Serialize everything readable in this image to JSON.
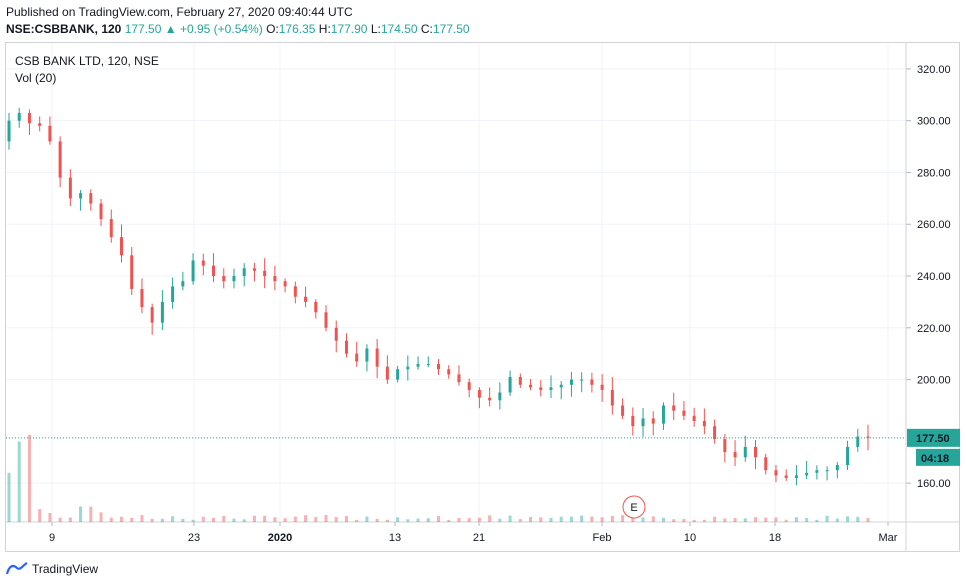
{
  "header": {
    "published": "Published on TradingView.com, February 27, 2020 09:40:44 UTC",
    "symbol": "NSE:CSBBANK, 120",
    "last": "177.50",
    "change": "+0.95 (+0.54%)",
    "o_label": "O:",
    "o_val": "176.35",
    "h_label": "H:",
    "h_val": "177.90",
    "l_label": "L:",
    "l_val": "174.50",
    "c_label": "C:",
    "c_val": "177.50"
  },
  "legend": {
    "title": "CSB BANK LTD, 120, NSE",
    "volume": "Vol (20)"
  },
  "footer": {
    "brand": "TradingView"
  },
  "colors": {
    "up": "#26a69a",
    "down": "#ef5350",
    "grid": "#f0f3fa"
  },
  "chart_data": {
    "type": "line",
    "title": "CSB BANK LTD, 120, NSE",
    "ylim": [
      145,
      330
    ],
    "y_ticks": [
      "320.00",
      "300.00",
      "280.00",
      "260.00",
      "240.00",
      "220.00",
      "200.00",
      "160.00"
    ],
    "x_ticks": [
      "9",
      "23",
      "2020",
      "13",
      "21",
      "Feb",
      "10",
      "18",
      "Mar"
    ],
    "last_price_label": "177.50",
    "countdown_label": "04:18",
    "event_marker": "E",
    "series": [
      {
        "values": [
          300,
          303,
          299,
          298,
          292,
          278,
          270,
          272,
          268,
          262,
          255,
          248,
          235,
          228,
          222,
          230,
          236,
          238,
          246,
          244,
          240,
          238,
          240,
          243,
          242,
          240,
          238,
          236,
          232,
          230,
          226,
          220,
          215,
          210,
          207,
          212,
          205,
          200,
          204,
          205,
          206,
          206,
          204,
          202,
          199,
          196,
          193,
          192,
          195,
          201,
          198,
          197,
          196,
          197,
          198,
          200,
          200,
          198,
          196,
          190,
          186,
          182,
          185,
          183,
          190,
          188,
          186,
          184,
          182,
          177,
          172,
          170,
          174,
          170,
          165,
          163,
          162,
          163,
          164,
          165,
          165,
          167,
          174,
          178,
          177.5
        ]
      }
    ],
    "grid": true
  }
}
